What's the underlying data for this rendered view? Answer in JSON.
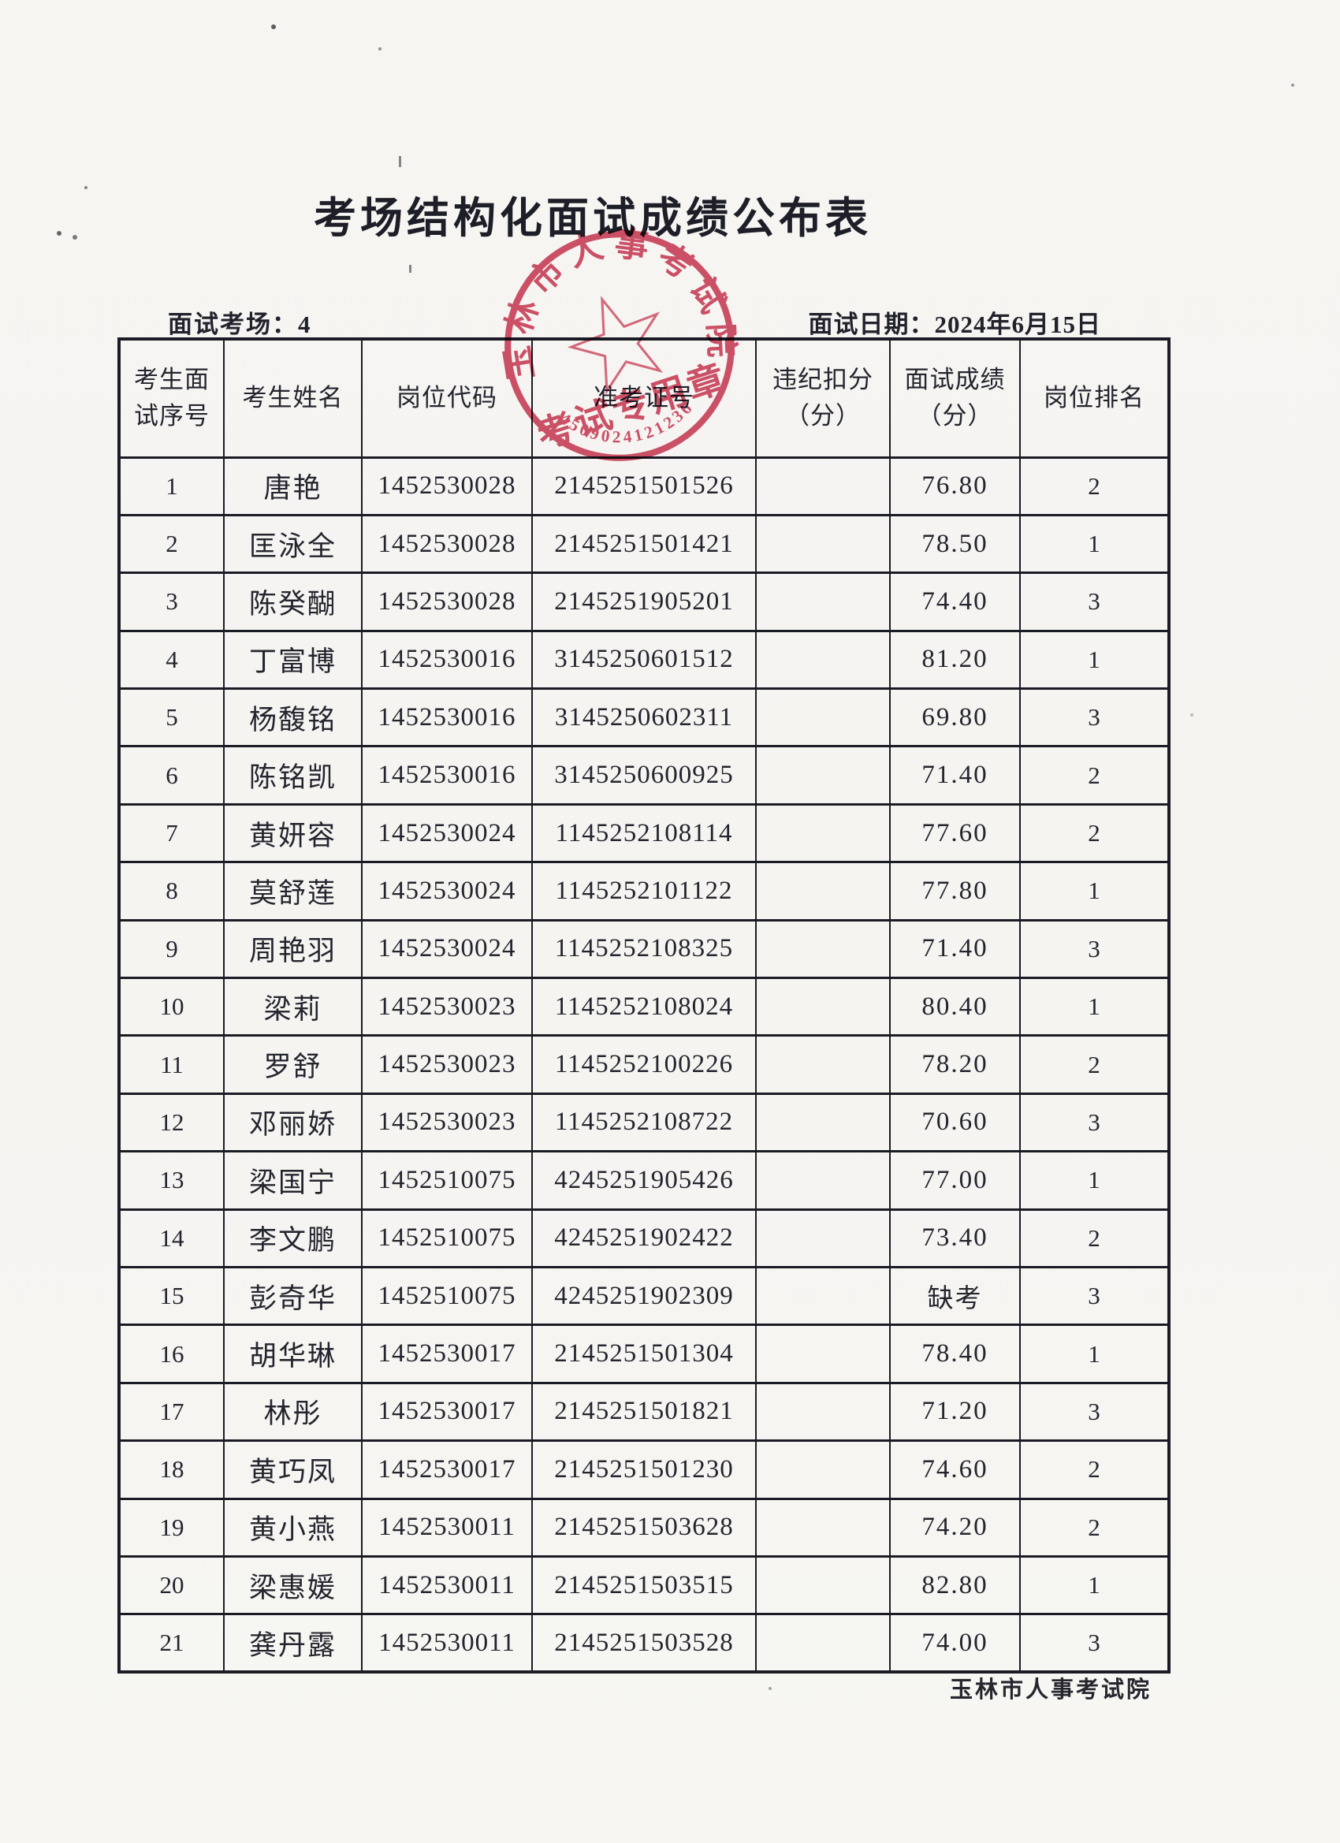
{
  "doc": {
    "title": "考场结构化面试成绩公布表",
    "footer": "玉林市人事考试院"
  },
  "meta": {
    "room_label": "面试考场：4",
    "date_label": "面试日期：2024年6月15日"
  },
  "table": {
    "headers": [
      "考生面\n试序号",
      "考生姓名",
      "岗位代码",
      "准考证号",
      "违纪扣分\n（分）",
      "面试成绩\n（分）",
      "岗位排名"
    ],
    "rows": [
      {
        "seq": "1",
        "name": "唐艳",
        "post_code": "1452530028",
        "ticket_no": "2145251501526",
        "penalty": "",
        "score": "76.80",
        "rank": "2"
      },
      {
        "seq": "2",
        "name": "匡泳全",
        "post_code": "1452530028",
        "ticket_no": "2145251501421",
        "penalty": "",
        "score": "78.50",
        "rank": "1"
      },
      {
        "seq": "3",
        "name": "陈癸醐",
        "post_code": "1452530028",
        "ticket_no": "2145251905201",
        "penalty": "",
        "score": "74.40",
        "rank": "3"
      },
      {
        "seq": "4",
        "name": "丁富博",
        "post_code": "1452530016",
        "ticket_no": "3145250601512",
        "penalty": "",
        "score": "81.20",
        "rank": "1"
      },
      {
        "seq": "5",
        "name": "杨馥铭",
        "post_code": "1452530016",
        "ticket_no": "3145250602311",
        "penalty": "",
        "score": "69.80",
        "rank": "3"
      },
      {
        "seq": "6",
        "name": "陈铭凯",
        "post_code": "1452530016",
        "ticket_no": "3145250600925",
        "penalty": "",
        "score": "71.40",
        "rank": "2"
      },
      {
        "seq": "7",
        "name": "黄妍容",
        "post_code": "1452530024",
        "ticket_no": "1145252108114",
        "penalty": "",
        "score": "77.60",
        "rank": "2"
      },
      {
        "seq": "8",
        "name": "莫舒莲",
        "post_code": "1452530024",
        "ticket_no": "1145252101122",
        "penalty": "",
        "score": "77.80",
        "rank": "1"
      },
      {
        "seq": "9",
        "name": "周艳羽",
        "post_code": "1452530024",
        "ticket_no": "1145252108325",
        "penalty": "",
        "score": "71.40",
        "rank": "3"
      },
      {
        "seq": "10",
        "name": "梁莉",
        "post_code": "1452530023",
        "ticket_no": "1145252108024",
        "penalty": "",
        "score": "80.40",
        "rank": "1"
      },
      {
        "seq": "11",
        "name": "罗舒",
        "post_code": "1452530023",
        "ticket_no": "1145252100226",
        "penalty": "",
        "score": "78.20",
        "rank": "2"
      },
      {
        "seq": "12",
        "name": "邓丽娇",
        "post_code": "1452530023",
        "ticket_no": "1145252108722",
        "penalty": "",
        "score": "70.60",
        "rank": "3"
      },
      {
        "seq": "13",
        "name": "梁国宁",
        "post_code": "1452510075",
        "ticket_no": "4245251905426",
        "penalty": "",
        "score": "77.00",
        "rank": "1"
      },
      {
        "seq": "14",
        "name": "李文鹏",
        "post_code": "1452510075",
        "ticket_no": "4245251902422",
        "penalty": "",
        "score": "73.40",
        "rank": "2"
      },
      {
        "seq": "15",
        "name": "彭奇华",
        "post_code": "1452510075",
        "ticket_no": "4245251902309",
        "penalty": "",
        "score": "缺考",
        "rank": "3"
      },
      {
        "seq": "16",
        "name": "胡华琳",
        "post_code": "1452530017",
        "ticket_no": "2145251501304",
        "penalty": "",
        "score": "78.40",
        "rank": "1"
      },
      {
        "seq": "17",
        "name": "林彤",
        "post_code": "1452530017",
        "ticket_no": "2145251501821",
        "penalty": "",
        "score": "71.20",
        "rank": "3"
      },
      {
        "seq": "18",
        "name": "黄巧凤",
        "post_code": "1452530017",
        "ticket_no": "2145251501230",
        "penalty": "",
        "score": "74.60",
        "rank": "2"
      },
      {
        "seq": "19",
        "name": "黄小燕",
        "post_code": "1452530011",
        "ticket_no": "2145251503628",
        "penalty": "",
        "score": "74.20",
        "rank": "2"
      },
      {
        "seq": "20",
        "name": "梁惠媛",
        "post_code": "1452530011",
        "ticket_no": "2145251503515",
        "penalty": "",
        "score": "82.80",
        "rank": "1"
      },
      {
        "seq": "21",
        "name": "龚丹露",
        "post_code": "1452530011",
        "ticket_no": "2145251503528",
        "penalty": "",
        "score": "74.00",
        "rank": "3"
      }
    ]
  },
  "stamp": {
    "ring_text": "玉林市人事考试院",
    "band_text": "考试专用章",
    "serial": "4509024121236",
    "color": "#cd3b56"
  }
}
